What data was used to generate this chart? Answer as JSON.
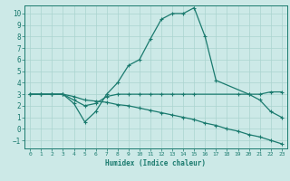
{
  "xlabel": "Humidex (Indice chaleur)",
  "bg_color": "#cce9e7",
  "line_color": "#1a7a6e",
  "grid_color": "#aad4d0",
  "xlim": [
    -0.5,
    23.5
  ],
  "ylim": [
    -1.7,
    10.7
  ],
  "xticks": [
    0,
    1,
    2,
    3,
    4,
    5,
    6,
    7,
    8,
    9,
    10,
    11,
    12,
    13,
    14,
    15,
    16,
    17,
    18,
    19,
    20,
    21,
    22,
    23
  ],
  "yticks": [
    -1,
    0,
    1,
    2,
    3,
    4,
    5,
    6,
    7,
    8,
    9,
    10
  ],
  "line1_x": [
    0,
    1,
    2,
    3,
    4,
    5,
    6,
    7,
    8,
    9,
    10,
    11,
    12,
    13,
    14,
    15,
    16,
    17,
    20,
    21,
    22,
    23
  ],
  "line1_y": [
    3,
    3,
    3,
    3,
    2.2,
    0.6,
    1.5,
    3.0,
    4.0,
    5.5,
    6.0,
    7.8,
    9.5,
    10.0,
    10.0,
    10.5,
    8.0,
    4.2,
    3.0,
    2.5,
    1.5,
    1.0
  ],
  "line2_x": [
    0,
    1,
    2,
    3,
    4,
    5,
    6,
    7,
    8,
    9,
    10,
    11,
    12,
    13,
    14,
    15,
    19,
    20,
    21,
    22,
    23
  ],
  "line2_y": [
    3,
    3,
    3,
    3,
    2.5,
    2.0,
    2.2,
    2.8,
    3.0,
    3.0,
    3.0,
    3.0,
    3.0,
    3.0,
    3.0,
    3.0,
    3.0,
    3.0,
    3.0,
    3.2,
    3.2
  ],
  "line3_x": [
    0,
    1,
    2,
    3,
    4,
    5,
    6,
    7,
    8,
    9,
    10,
    11,
    12,
    13,
    14,
    15,
    16,
    17,
    18,
    19,
    20,
    21,
    22,
    23
  ],
  "line3_y": [
    3.0,
    3.0,
    3.0,
    3.0,
    2.8,
    2.5,
    2.4,
    2.3,
    2.1,
    2.0,
    1.8,
    1.6,
    1.4,
    1.2,
    1.0,
    0.8,
    0.5,
    0.3,
    0.0,
    -0.2,
    -0.5,
    -0.7,
    -1.0,
    -1.3
  ]
}
